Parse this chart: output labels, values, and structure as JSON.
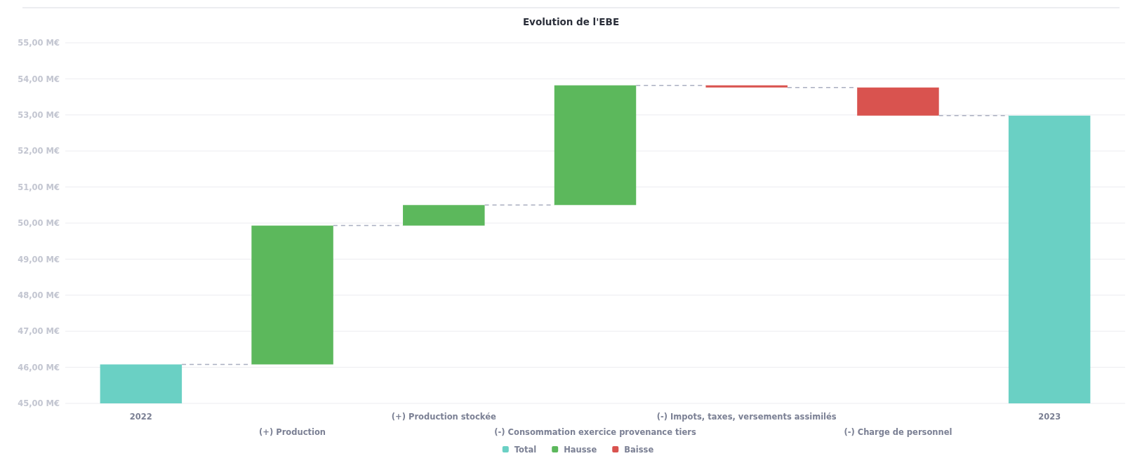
{
  "chart_data": {
    "type": "bar",
    "title": "Evolution de l'EBE",
    "categories": [
      "2022",
      "(+) Production",
      "(+) Production stockée",
      "(-) Consommation exercice provenance tiers",
      "(-) Impots, taxes, versements assimilés",
      "(-) Charge de personnel",
      "2023"
    ],
    "series": [
      {
        "name": "Total",
        "color": "#6ad0c4",
        "values": [
          46.08,
          null,
          null,
          null,
          null,
          null,
          52.98
        ]
      },
      {
        "name": "Hausse",
        "color": "#5cb85c",
        "values": [
          null,
          3.85,
          0.57,
          3.32,
          null,
          null,
          null
        ],
        "base": [
          null,
          46.08,
          49.93,
          50.5,
          null,
          null,
          null
        ]
      },
      {
        "name": "Baisse",
        "color": "#d9534f",
        "values": [
          null,
          null,
          null,
          null,
          -0.06,
          -0.78,
          null
        ],
        "base": [
          null,
          null,
          null,
          null,
          53.82,
          53.76,
          null
        ]
      }
    ],
    "ylim": [
      45,
      55
    ],
    "yticks": [
      {
        "value": 45,
        "label": "45,00 M€"
      },
      {
        "value": 46,
        "label": "46,00 M€"
      },
      {
        "value": 47,
        "label": "47,00 M€"
      },
      {
        "value": 48,
        "label": "48,00 M€"
      },
      {
        "value": 49,
        "label": "49,00 M€"
      },
      {
        "value": 50,
        "label": "50,00 M€"
      },
      {
        "value": 51,
        "label": "51,00 M€"
      },
      {
        "value": 52,
        "label": "52,00 M€"
      },
      {
        "value": 53,
        "label": "53,00 M€"
      },
      {
        "value": 54,
        "label": "54,00 M€"
      },
      {
        "value": 55,
        "label": "55,00 M€"
      }
    ],
    "grid": "y",
    "legend": "bottom"
  }
}
